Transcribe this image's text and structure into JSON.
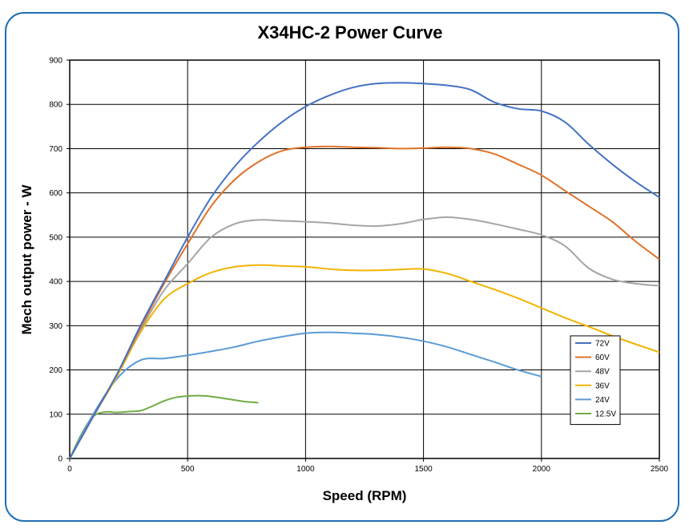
{
  "chart_data": {
    "type": "line",
    "title": "X34HC-2 Power Curve",
    "xlabel": "Speed (RPM)",
    "ylabel": "Mech output power - W",
    "xlim": [
      0,
      2500
    ],
    "ylim": [
      0,
      900
    ],
    "x_ticks": [
      0,
      500,
      1000,
      1500,
      2000,
      2500
    ],
    "y_ticks": [
      0,
      100,
      200,
      300,
      400,
      500,
      600,
      700,
      800,
      900
    ],
    "grid": true,
    "legend_position": "right",
    "series": [
      {
        "name": "72V",
        "color": "#4472c4",
        "x": [
          0,
          100,
          200,
          300,
          400,
          500,
          600,
          700,
          800,
          900,
          1000,
          1100,
          1200,
          1300,
          1400,
          1500,
          1600,
          1700,
          1800,
          1900,
          2000,
          2100,
          2200,
          2300,
          2400,
          2500
        ],
        "y": [
          0,
          95,
          190,
          300,
          400,
          500,
          590,
          660,
          715,
          760,
          795,
          820,
          838,
          847,
          849,
          847,
          843,
          833,
          805,
          790,
          785,
          760,
          710,
          665,
          625,
          590
        ]
      },
      {
        "name": "60V",
        "color": "#e07128",
        "x": [
          0,
          100,
          200,
          300,
          400,
          500,
          600,
          700,
          800,
          900,
          1000,
          1100,
          1200,
          1300,
          1400,
          1500,
          1600,
          1700,
          1800,
          1900,
          2000,
          2100,
          2200,
          2300,
          2400,
          2500
        ],
        "y": [
          0,
          95,
          190,
          295,
          395,
          485,
          570,
          630,
          670,
          695,
          703,
          705,
          703,
          702,
          700,
          701,
          703,
          700,
          688,
          665,
          640,
          605,
          570,
          535,
          490,
          450
        ]
      },
      {
        "name": "48V",
        "color": "#a5a5a5",
        "x": [
          0,
          100,
          200,
          300,
          400,
          500,
          600,
          700,
          800,
          900,
          1000,
          1100,
          1200,
          1300,
          1400,
          1500,
          1600,
          1700,
          1800,
          1900,
          2000,
          2100,
          2200,
          2300,
          2400,
          2500
        ],
        "y": [
          0,
          95,
          190,
          290,
          380,
          440,
          500,
          530,
          539,
          537,
          535,
          532,
          527,
          525,
          530,
          540,
          545,
          540,
          530,
          518,
          505,
          480,
          430,
          405,
          395,
          390
        ]
      },
      {
        "name": "36V",
        "color": "#f0b400",
        "x": [
          0,
          100,
          200,
          300,
          400,
          500,
          600,
          700,
          800,
          900,
          1000,
          1100,
          1200,
          1300,
          1400,
          1500,
          1600,
          1700,
          1800,
          1900,
          2000,
          2100,
          2200,
          2300,
          2400,
          2500
        ],
        "y": [
          0,
          95,
          185,
          285,
          360,
          395,
          420,
          433,
          437,
          435,
          433,
          428,
          425,
          425,
          427,
          428,
          418,
          400,
          382,
          362,
          340,
          318,
          298,
          277,
          258,
          240
        ]
      },
      {
        "name": "24V",
        "color": "#5b9bd5",
        "x": [
          0,
          100,
          200,
          300,
          400,
          500,
          600,
          700,
          800,
          900,
          1000,
          1100,
          1200,
          1300,
          1400,
          1500,
          1600,
          1700,
          1800,
          1900,
          2000
        ],
        "y": [
          0,
          100,
          180,
          222,
          226,
          233,
          242,
          252,
          265,
          275,
          283,
          285,
          283,
          280,
          274,
          265,
          252,
          235,
          218,
          200,
          185
        ]
      },
      {
        "name": "12.5V",
        "color": "#70ad47",
        "x": [
          0,
          50,
          100,
          150,
          200,
          250,
          300,
          350,
          400,
          450,
          500,
          550,
          600,
          650,
          700,
          750,
          800
        ],
        "y": [
          0,
          55,
          95,
          105,
          104,
          106,
          108,
          118,
          130,
          138,
          141,
          142,
          140,
          136,
          132,
          128,
          126
        ]
      }
    ]
  }
}
